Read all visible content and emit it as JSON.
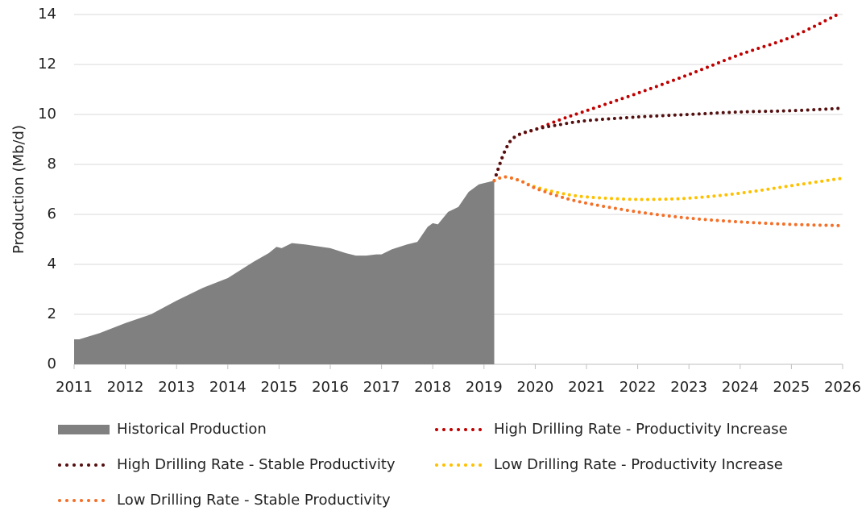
{
  "chart_data": {
    "type": "line",
    "y_label": "Production (Mb/d)",
    "xlim": [
      2011,
      2026
    ],
    "xticks": [
      2011,
      2012,
      2013,
      2014,
      2015,
      2016,
      2017,
      2018,
      2019,
      2020,
      2021,
      2022,
      2023,
      2024,
      2025,
      2026
    ],
    "ylim": [
      0,
      14
    ],
    "yticks": [
      0,
      2,
      4,
      6,
      8,
      10,
      12,
      14
    ],
    "grid": true,
    "legend": "bottom",
    "series": [
      {
        "name": "Historical Production",
        "type": "area",
        "color": "#808080",
        "x": [
          2011,
          2011.1,
          2011.5,
          2012,
          2012.5,
          2013,
          2013.5,
          2014,
          2014.5,
          2014.8,
          2014.95,
          2015.05,
          2015.25,
          2015.5,
          2016,
          2016.3,
          2016.5,
          2016.7,
          2016.9,
          2017,
          2017.2,
          2017.5,
          2017.7,
          2017.9,
          2018,
          2018.1,
          2018.3,
          2018.5,
          2018.7,
          2018.9,
          2019.2
        ],
        "values": [
          1.0,
          1.0,
          1.25,
          1.65,
          2.0,
          2.55,
          3.05,
          3.45,
          4.1,
          4.45,
          4.7,
          4.65,
          4.85,
          4.8,
          4.65,
          4.45,
          4.35,
          4.35,
          4.4,
          4.4,
          4.6,
          4.8,
          4.9,
          5.5,
          5.65,
          5.6,
          6.1,
          6.3,
          6.9,
          7.2,
          7.35
        ]
      },
      {
        "name": "High Drilling Rate - Productivity Increase",
        "type": "dotted",
        "color": "#c00000",
        "x": [
          2019.2,
          2019.4,
          2019.6,
          2020,
          2020.5,
          2021,
          2022,
          2023,
          2024,
          2025,
          2025.9
        ],
        "values": [
          7.35,
          8.5,
          9.1,
          9.4,
          9.8,
          10.15,
          10.85,
          11.6,
          12.4,
          13.1,
          14.0
        ]
      },
      {
        "name": "High Drilling Rate - Stable Productivity",
        "type": "dotted",
        "color": "#541010",
        "x": [
          2019.2,
          2019.4,
          2019.6,
          2020,
          2020.5,
          2021,
          2022,
          2023,
          2024,
          2025,
          2026
        ],
        "values": [
          7.35,
          8.5,
          9.1,
          9.4,
          9.6,
          9.75,
          9.9,
          10.0,
          10.1,
          10.15,
          10.25
        ]
      },
      {
        "name": "Low Drilling Rate - Productivity Increase",
        "type": "dotted",
        "color": "#ffc000",
        "x": [
          2019.2,
          2019.4,
          2019.7,
          2020,
          2020.5,
          2021,
          2022,
          2023,
          2024,
          2025,
          2026
        ],
        "values": [
          7.35,
          7.5,
          7.35,
          7.1,
          6.85,
          6.7,
          6.6,
          6.65,
          6.85,
          7.15,
          7.45
        ]
      },
      {
        "name": "Low Drilling Rate - Stable Productivity",
        "type": "dotted",
        "color": "#f4702a",
        "x": [
          2019.2,
          2019.4,
          2019.7,
          2020,
          2020.5,
          2021,
          2022,
          2023,
          2024,
          2025,
          2026
        ],
        "values": [
          7.35,
          7.5,
          7.35,
          7.05,
          6.7,
          6.45,
          6.1,
          5.85,
          5.7,
          5.6,
          5.55
        ]
      }
    ]
  }
}
